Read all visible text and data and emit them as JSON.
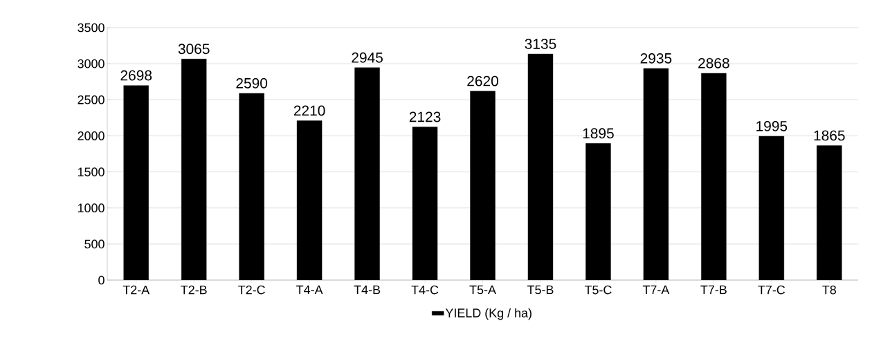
{
  "chart_data": {
    "type": "bar",
    "categories": [
      "T2-A",
      "T2-B",
      "T2-C",
      "T4-A",
      "T4-B",
      "T4-C",
      "T5-A",
      "T5-B",
      "T5-C",
      "T7-A",
      "T7-B",
      "T7-C",
      "T8"
    ],
    "series": [
      {
        "name": "YIELD (Kg / ha)",
        "color": "#000000",
        "values": [
          2698,
          3065,
          2590,
          2210,
          2945,
          2123,
          2620,
          3135,
          1895,
          2935,
          2868,
          1995,
          1865
        ]
      }
    ],
    "ylim": [
      0,
      3500
    ],
    "yticks": [
      0,
      500,
      1000,
      1500,
      2000,
      2500,
      3000,
      3500
    ],
    "grid": "y",
    "legend": "bottom",
    "data_labels": true
  }
}
